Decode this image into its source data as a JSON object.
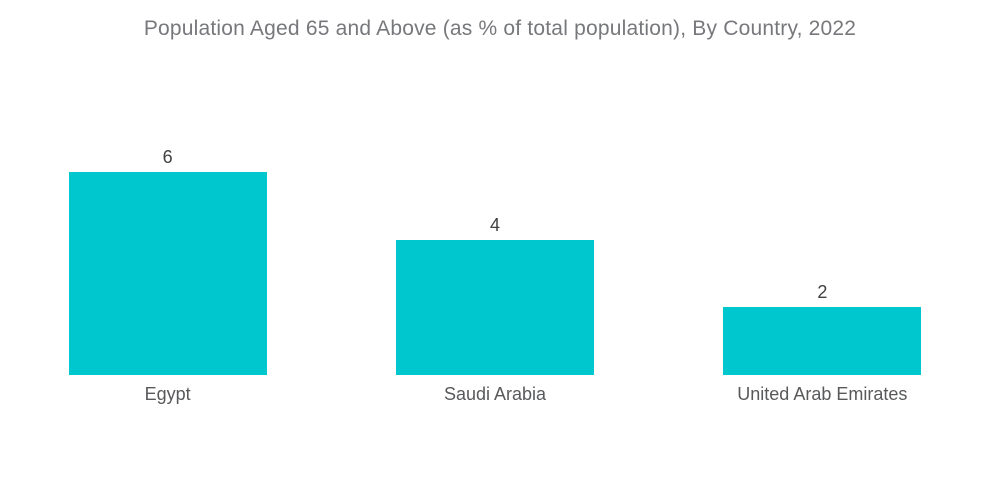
{
  "title": "Population Aged 65 and Above (as % of total population), By Country, 2022",
  "colors": {
    "bar": "#00C6CE",
    "title_text": "#77787B",
    "value_label": "#414042",
    "category_label": "#58595B",
    "background": "#FFFFFF"
  },
  "chart_data": {
    "type": "bar",
    "title": "Population Aged 65 and Above (as % of total population), By Country, 2022",
    "categories": [
      "Egypt",
      "Saudi Arabia",
      "United Arab Emirates"
    ],
    "values": [
      6,
      4,
      2
    ],
    "value_labels": [
      "6",
      "4",
      "2"
    ],
    "xlabel": "",
    "ylabel": "",
    "ylim": [
      0,
      6
    ],
    "grid": false,
    "legend_position": "none",
    "axes_shown": false,
    "bar_color": "#00C6CE",
    "value_labels_shown": true
  }
}
